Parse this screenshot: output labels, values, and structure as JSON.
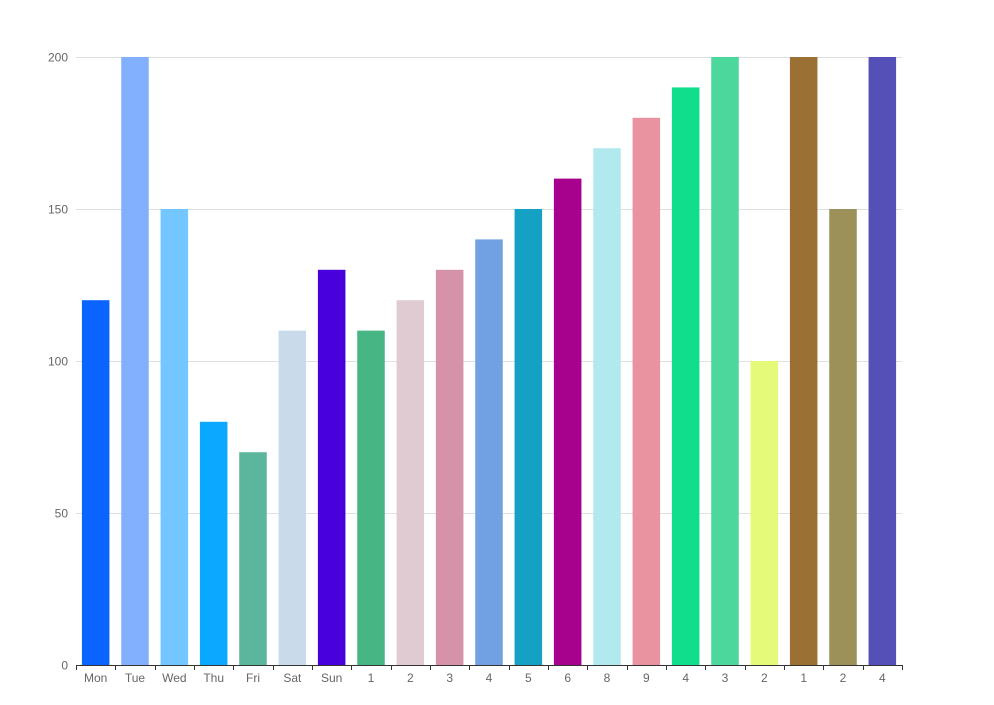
{
  "chart_data": {
    "type": "bar",
    "title": "",
    "xlabel": "",
    "ylabel": "",
    "ylim": [
      0,
      200
    ],
    "yticks": [
      0,
      50,
      100,
      150,
      200
    ],
    "grid": true,
    "legend": "none",
    "categories": [
      "Mon",
      "Tue",
      "Wed",
      "Thu",
      "Fri",
      "Sat",
      "Sun",
      "1",
      "2",
      "3",
      "4",
      "5",
      "6",
      "8",
      "9",
      "4",
      "3",
      "2",
      "1",
      "2",
      "4"
    ],
    "values": [
      120,
      200,
      150,
      80,
      70,
      110,
      130,
      110,
      120,
      130,
      140,
      150,
      160,
      170,
      180,
      190,
      200,
      100,
      200,
      150,
      200
    ],
    "colors": [
      "#0a64ff",
      "#82b0ff",
      "#73c6ff",
      "#0aa8ff",
      "#5cb59d",
      "#c9dbea",
      "#4800dd",
      "#48b585",
      "#e0cbd2",
      "#d592a9",
      "#72a1e2",
      "#14a1c4",
      "#a7028e",
      "#b2e9ee",
      "#e8939f",
      "#10de8d",
      "#4cd79d",
      "#e5fa78",
      "#9b7034",
      "#9b9159",
      "#5450b8"
    ]
  },
  "colors": {
    "grid": "#e0e0e0",
    "axis": "#333333",
    "label": "#666666"
  }
}
